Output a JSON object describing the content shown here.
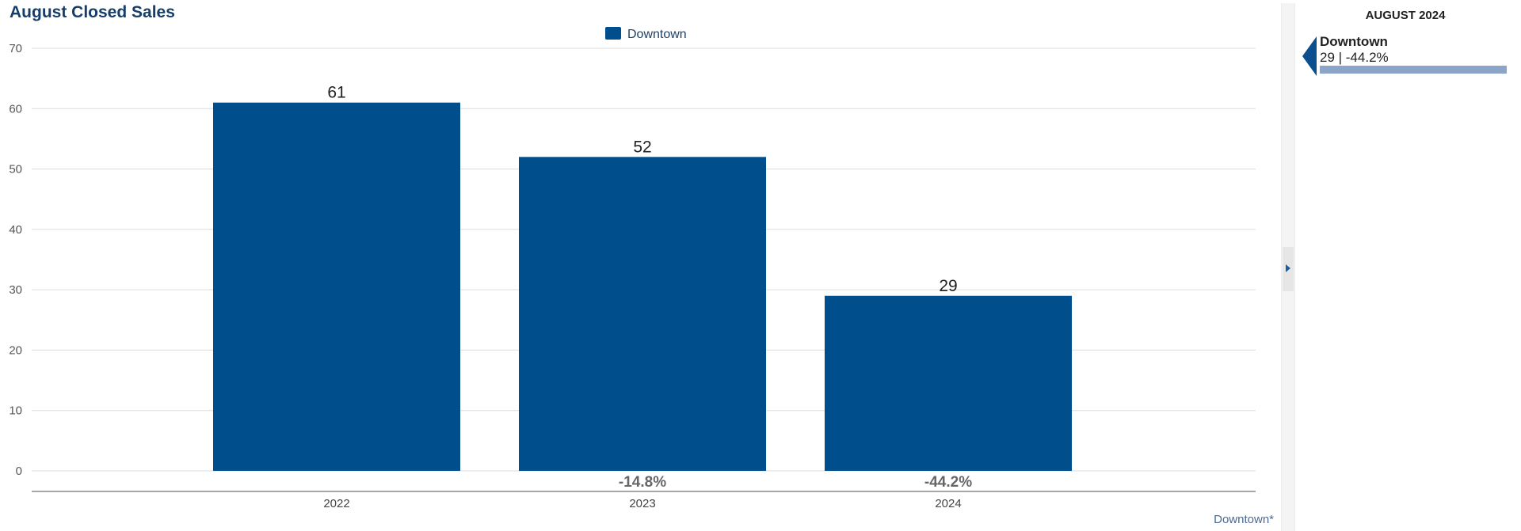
{
  "chart_data": {
    "type": "bar",
    "title": "August Closed Sales",
    "categories": [
      "2022",
      "2023",
      "2024"
    ],
    "series": [
      {
        "name": "Downtown",
        "values": [
          61,
          52,
          29
        ],
        "color": "#004f8c"
      }
    ],
    "yticks": [
      "0",
      "10",
      "20",
      "30",
      "40",
      "50",
      "60",
      "70"
    ],
    "ylim": [
      0,
      70
    ],
    "change_labels": [
      "",
      "-14.8%",
      "-44.2%"
    ],
    "legend_position": "top-center",
    "grid": true,
    "footnote": "Downtown*"
  },
  "sidebar": {
    "period": "AUGUST 2024",
    "name": "Downtown",
    "value_text": "29 | -44.2%",
    "bar_fraction": 1.0,
    "bar_color": "#8aa5c8"
  }
}
